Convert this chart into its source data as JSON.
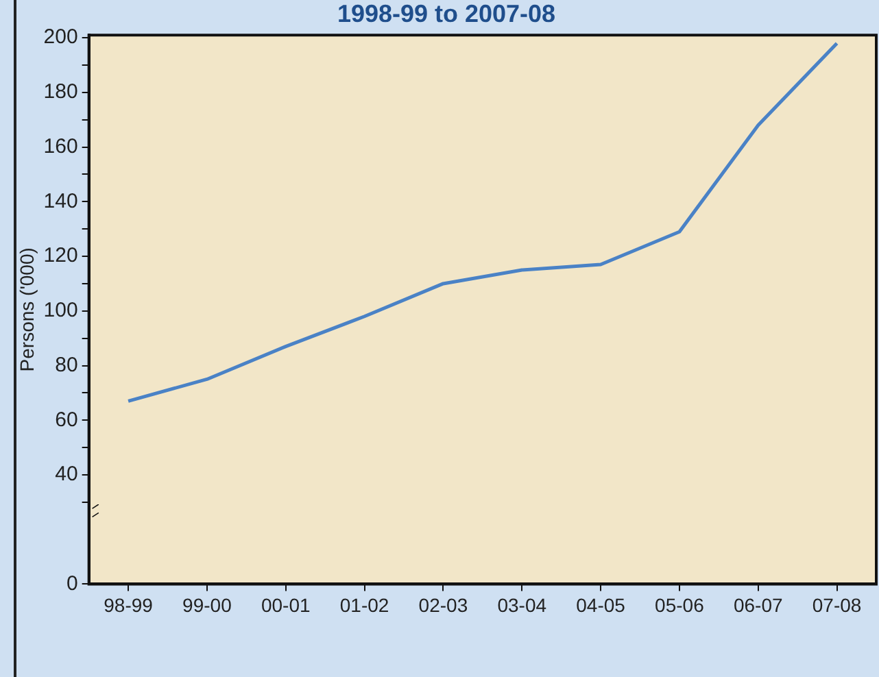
{
  "chart_data": {
    "type": "line",
    "title": "1998-99 to 2007-08",
    "ylabel": "Persons ('000)",
    "categories": [
      "98-99",
      "99-00",
      "00-01",
      "01-02",
      "02-03",
      "03-04",
      "04-05",
      "05-06",
      "06-07",
      "07-08"
    ],
    "series": [
      {
        "color": "#4a82c6",
        "values": [
          67,
          75,
          87,
          98,
          110,
          115,
          117,
          129,
          168,
          198
        ]
      }
    ],
    "ylim": [
      0,
      201
    ],
    "yticks": [
      0,
      {
        "value": 30,
        "label": null
      },
      40,
      {
        "value": 50,
        "label": null
      },
      60,
      {
        "value": 70,
        "label": null
      },
      80,
      {
        "value": 90,
        "label": null
      },
      100,
      {
        "value": 110,
        "label": null
      },
      120,
      {
        "value": 130,
        "label": null
      },
      140,
      {
        "value": 150,
        "label": null
      },
      160,
      {
        "value": 170,
        "label": null
      },
      180,
      {
        "value": 190,
        "label": null
      },
      200
    ],
    "grid": false,
    "legend": false,
    "marker": "none",
    "line_style": "solid"
  }
}
